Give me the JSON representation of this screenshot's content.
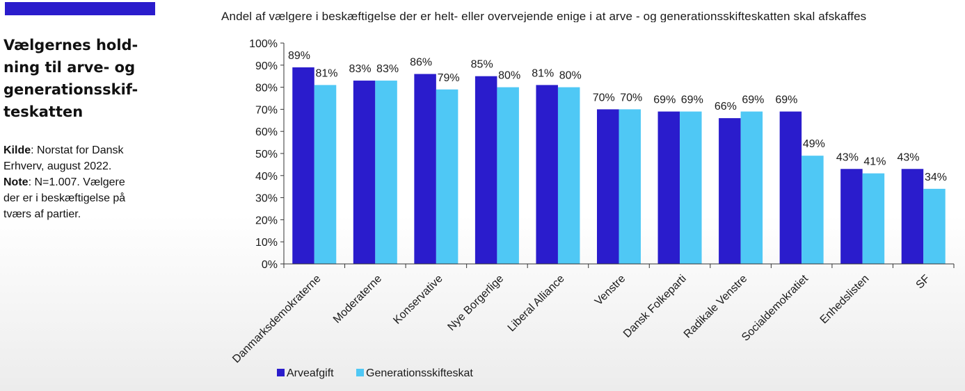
{
  "sidebar": {
    "title_lines": [
      "Vælgernes hold-",
      "ning til arve- og",
      "generationsskif-",
      "teskatten"
    ],
    "source_label": "Kilde",
    "source_text": ": Norstat for Dansk",
    "source_text_2": "Erhverv, august 2022.",
    "note_label": "Note",
    "note_text": ": N=1.007. Vælgere",
    "note_text_2": "der er i beskæftigelse på",
    "note_text_3": "tværs af partier."
  },
  "colors": {
    "topbar": "#2a1ccc",
    "series_1": "#2a1ccc",
    "series_2": "#4fc8f5"
  },
  "chart_data": {
    "type": "bar",
    "title": "Andel af vælgere i beskæftigelse der er helt- eller overvejende enige i at arve - og generationsskifteskatten skal afskaffes",
    "categories": [
      "Danmarksdemokraterne",
      "Moderaterne",
      "Konservative",
      "Nye Borgerlige",
      "Liberal Alliance",
      "Venstre",
      "Dansk Folkeparti",
      "Radikale Venstre",
      "Socialdemokratiet",
      "Enhedslisten",
      "SF"
    ],
    "series": [
      {
        "name": "Arveafgift",
        "values": [
          89,
          83,
          86,
          85,
          81,
          70,
          69,
          66,
          69,
          43,
          43
        ]
      },
      {
        "name": "Generationsskifteskat",
        "values": [
          81,
          83,
          79,
          80,
          80,
          70,
          69,
          69,
          49,
          41,
          34
        ]
      }
    ],
    "yticks": [
      "0%",
      "10%",
      "20%",
      "30%",
      "40%",
      "50%",
      "60%",
      "70%",
      "80%",
      "90%",
      "100%"
    ],
    "ylim": [
      0,
      100
    ],
    "value_suffix": "%",
    "legend_position": "bottom-left",
    "grid": false
  }
}
